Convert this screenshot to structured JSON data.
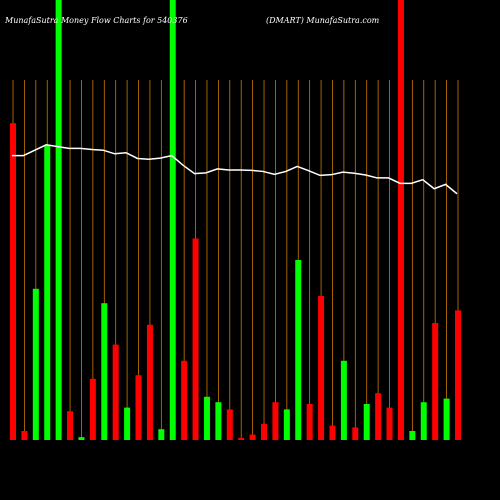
{
  "header": {
    "left_text": "MunafaSutra  Money Flow  Charts for 540376",
    "right_text": "(DMART) MunafaSutra.com"
  },
  "colors": {
    "background": "#000000",
    "up": "#00ff00",
    "down": "#ff0000",
    "grid": "#cc7a00",
    "price_line": "#ffffff",
    "text": "#ffffff"
  },
  "chart_data": {
    "type": "bar",
    "title": "",
    "xlabel": "",
    "ylabel": "",
    "ylim": [
      0,
      100
    ],
    "grid": true,
    "bars": [
      {
        "value": 88,
        "dir": "down"
      },
      {
        "value": 2.5,
        "dir": "down"
      },
      {
        "value": 42,
        "dir": "up"
      },
      {
        "value": 82,
        "dir": "up"
      },
      {
        "value": 100,
        "dir": "up"
      },
      {
        "value": 8,
        "dir": "down"
      },
      {
        "value": 0.8,
        "dir": "up"
      },
      {
        "value": 17,
        "dir": "down"
      },
      {
        "value": 38,
        "dir": "up"
      },
      {
        "value": 26.5,
        "dir": "down"
      },
      {
        "value": 9,
        "dir": "up"
      },
      {
        "value": 18,
        "dir": "down"
      },
      {
        "value": 32,
        "dir": "down"
      },
      {
        "value": 3,
        "dir": "up"
      },
      {
        "value": 100,
        "dir": "up"
      },
      {
        "value": 22,
        "dir": "down"
      },
      {
        "value": 56,
        "dir": "down"
      },
      {
        "value": 12,
        "dir": "up"
      },
      {
        "value": 10.5,
        "dir": "up"
      },
      {
        "value": 8.5,
        "dir": "down"
      },
      {
        "value": 0.6,
        "dir": "down"
      },
      {
        "value": 1.5,
        "dir": "down"
      },
      {
        "value": 4.5,
        "dir": "down"
      },
      {
        "value": 10.5,
        "dir": "down"
      },
      {
        "value": 8.5,
        "dir": "up"
      },
      {
        "value": 50,
        "dir": "up"
      },
      {
        "value": 10,
        "dir": "down"
      },
      {
        "value": 40,
        "dir": "down"
      },
      {
        "value": 4,
        "dir": "down"
      },
      {
        "value": 22,
        "dir": "up"
      },
      {
        "value": 3.5,
        "dir": "down"
      },
      {
        "value": 10,
        "dir": "up"
      },
      {
        "value": 13,
        "dir": "down"
      },
      {
        "value": 9,
        "dir": "down"
      },
      {
        "value": 100,
        "dir": "down"
      },
      {
        "value": 2.5,
        "dir": "up"
      },
      {
        "value": 10.5,
        "dir": "up"
      },
      {
        "value": 32.5,
        "dir": "down"
      },
      {
        "value": 11.5,
        "dir": "up"
      },
      {
        "value": 36,
        "dir": "down"
      }
    ],
    "price_line": [
      79,
      79,
      80.5,
      82,
      81.5,
      81,
      81,
      80.7,
      80.5,
      79.5,
      79.8,
      78.2,
      78,
      78.3,
      79,
      76.3,
      74,
      74.2,
      75.3,
      75,
      75,
      74.9,
      74.6,
      73.8,
      74.6,
      76,
      74.8,
      73.5,
      73.7,
      74.4,
      74.1,
      73.6,
      72.8,
      72.8,
      71.3,
      71.3,
      72.3,
      69.8,
      71,
      68.4
    ],
    "x_labels": []
  }
}
